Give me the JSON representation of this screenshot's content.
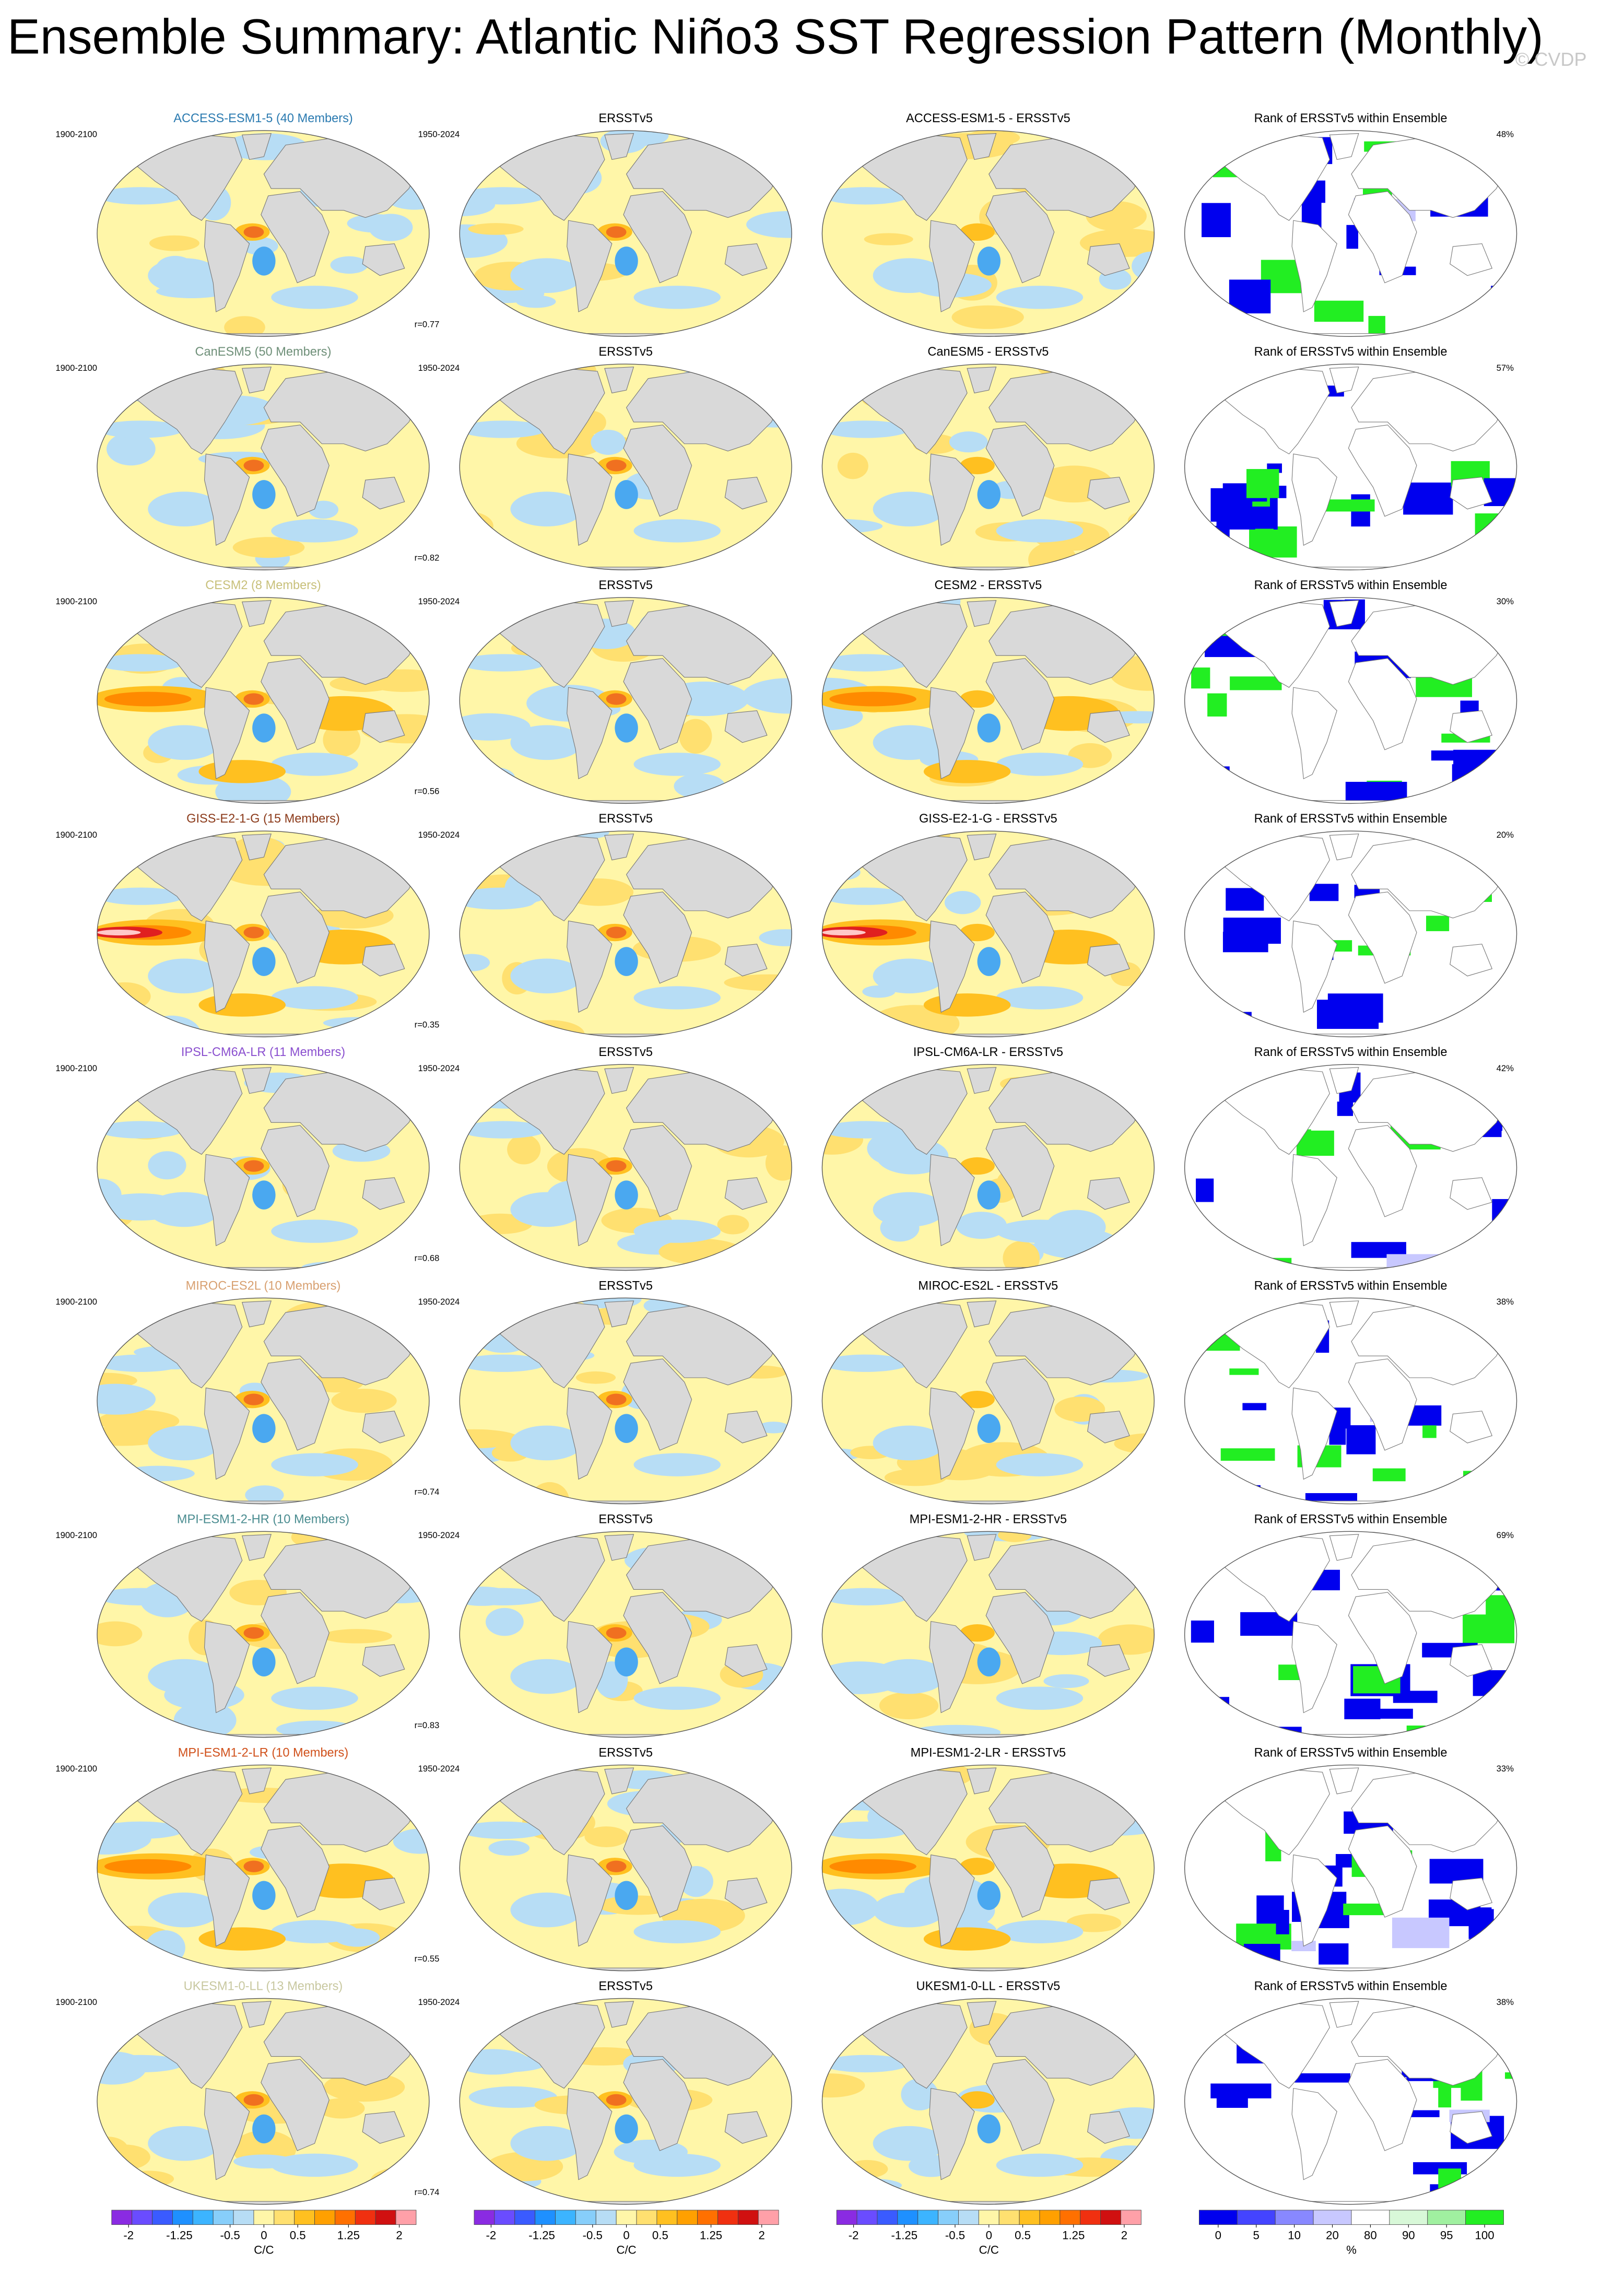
{
  "title": "Ensemble Summary: Atlantic Niño3 SST Regression Pattern (Monthly)",
  "watermark": "© CVDP",
  "rows": [
    {
      "model": "ACCESS-ESM1-5 (40 Members)",
      "color": "#2a7ab0",
      "model_period": "1900-2100",
      "r_label": "r=0.77",
      "obs_title": "ERSSTv5",
      "obs_period": "1950-2024",
      "diff_title": "ACCESS-ESM1-5 - ERSSTv5",
      "rank_title": "Rank of ERSSTv5 within Ensemble",
      "rank_pct": "48%"
    },
    {
      "model": "CanESM5 (50 Members)",
      "color": "#6e8f78",
      "model_period": "1900-2100",
      "r_label": "r=0.82",
      "obs_title": "ERSSTv5",
      "obs_period": "1950-2024",
      "diff_title": "CanESM5 - ERSSTv5",
      "rank_title": "Rank of ERSSTv5 within Ensemble",
      "rank_pct": "57%"
    },
    {
      "model": "CESM2 (8 Members)",
      "color": "#c8c07a",
      "model_period": "1900-2100",
      "r_label": "r=0.56",
      "obs_title": "ERSSTv5",
      "obs_period": "1950-2024",
      "diff_title": "CESM2 - ERSSTv5",
      "rank_title": "Rank of ERSSTv5 within Ensemble",
      "rank_pct": "30%"
    },
    {
      "model": "GISS-E2-1-G (15 Members)",
      "color": "#8b3a1a",
      "model_period": "1900-2100",
      "r_label": "r=0.35",
      "obs_title": "ERSSTv5",
      "obs_period": "1950-2024",
      "diff_title": "GISS-E2-1-G - ERSSTv5",
      "rank_title": "Rank of ERSSTv5 within Ensemble",
      "rank_pct": "20%"
    },
    {
      "model": "IPSL-CM6A-LR (11 Members)",
      "color": "#8a4fcf",
      "model_period": "1900-2100",
      "r_label": "r=0.68",
      "obs_title": "ERSSTv5",
      "obs_period": "1950-2024",
      "diff_title": "IPSL-CM6A-LR - ERSSTv5",
      "rank_title": "Rank of ERSSTv5 within Ensemble",
      "rank_pct": "42%"
    },
    {
      "model": "MIROC-ES2L (10 Members)",
      "color": "#d8a070",
      "model_period": "1900-2100",
      "r_label": "r=0.74",
      "obs_title": "ERSSTv5",
      "obs_period": "1950-2024",
      "diff_title": "MIROC-ES2L - ERSSTv5",
      "rank_title": "Rank of ERSSTv5 within Ensemble",
      "rank_pct": "38%"
    },
    {
      "model": "MPI-ESM1-2-HR (10 Members)",
      "color": "#4a8c90",
      "model_period": "1900-2100",
      "r_label": "r=0.83",
      "obs_title": "ERSSTv5",
      "obs_period": "1950-2024",
      "diff_title": "MPI-ESM1-2-HR - ERSSTv5",
      "rank_title": "Rank of ERSSTv5 within Ensemble",
      "rank_pct": "69%"
    },
    {
      "model": "MPI-ESM1-2-LR (10 Members)",
      "color": "#d0501a",
      "model_period": "1900-2100",
      "r_label": "r=0.55",
      "obs_title": "ERSSTv5",
      "obs_period": "1950-2024",
      "diff_title": "MPI-ESM1-2-LR - ERSSTv5",
      "rank_title": "Rank of ERSSTv5 within Ensemble",
      "rank_pct": "33%"
    },
    {
      "model": "UKESM1-0-LL (13 Members)",
      "color": "#c8c8a0",
      "model_period": "1900-2100",
      "r_label": "r=0.74",
      "obs_title": "ERSSTv5",
      "obs_period": "1950-2024",
      "diff_title": "UKESM1-0-LL - ERSSTv5",
      "rank_title": "Rank of ERSSTv5 within Ensemble",
      "rank_pct": "38%"
    }
  ],
  "colorbars": [
    {
      "ticks": [
        -2,
        -1.25,
        -0.5,
        0,
        0.5,
        1.25,
        2
      ],
      "lim": [
        -2.25,
        2.25
      ],
      "unit": "C/C"
    },
    {
      "ticks": [
        -2,
        -1.25,
        -0.5,
        0,
        0.5,
        1.25,
        2
      ],
      "lim": [
        -2.25,
        2.25
      ],
      "unit": "C/C"
    },
    {
      "ticks": [
        -2,
        -1.25,
        -0.5,
        0,
        0.5,
        1.25,
        2
      ],
      "lim": [
        -2.25,
        2.25
      ],
      "unit": "C/C"
    },
    {
      "ticks": [
        0,
        5,
        10,
        20,
        80,
        90,
        95,
        100
      ],
      "unit": "%"
    }
  ]
}
